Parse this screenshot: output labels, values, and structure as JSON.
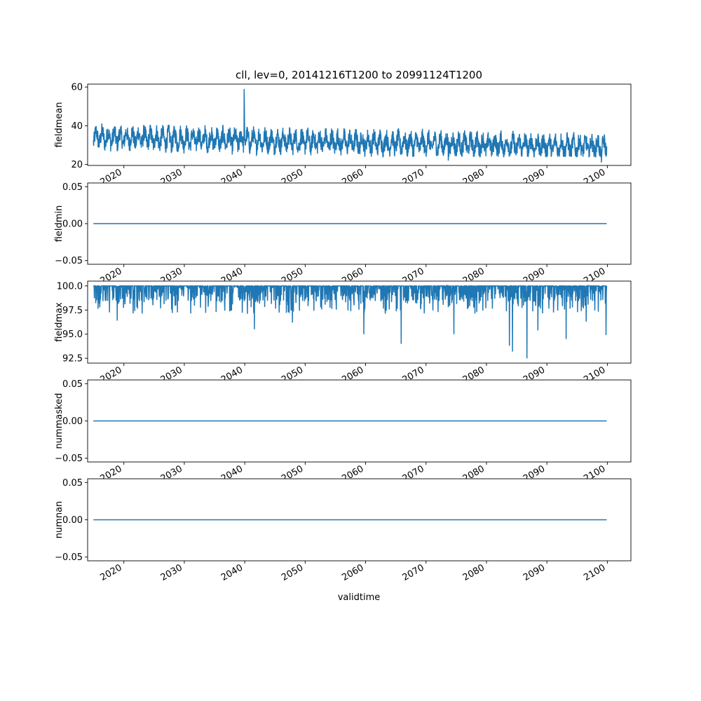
{
  "chart_data": {
    "type": "line",
    "title": "cll, lev=0, 20141216T1200 to 20991124T1200",
    "xlabel": "validtime",
    "xlim": [
      2014.0,
      2103.9
    ],
    "x_ticks": [
      2020,
      2030,
      2040,
      2050,
      2060,
      2070,
      2080,
      2090,
      2100
    ],
    "x_tick_labels": [
      "2020",
      "2030",
      "2040",
      "2050",
      "2060",
      "2070",
      "2080",
      "2090",
      "2100"
    ],
    "time_range": [
      2014.96,
      2099.9
    ],
    "line_color": "#1f77b4",
    "subplots": [
      {
        "ylabel": "fieldmean",
        "ylim": [
          19.5,
          61.5
        ],
        "y_ticks": [
          20,
          40,
          60
        ],
        "y_tick_labels": [
          "20",
          "40",
          "60"
        ],
        "series_kind": "noisy",
        "summary": {
          "base_start": 34,
          "base_end": 29,
          "typical_low": 27,
          "typical_high": 41,
          "min": 21,
          "max": 59
        },
        "spikes": [
          {
            "x": 2039.9,
            "y": 59.0
          },
          {
            "x": 2073.7,
            "y": 22.0
          },
          {
            "x": 2099.0,
            "y": 21.0
          }
        ]
      },
      {
        "ylabel": "fieldmin",
        "ylim": [
          -0.055,
          0.055
        ],
        "y_ticks": [
          -0.05,
          0.0,
          0.05
        ],
        "y_tick_labels": [
          "−0.05",
          "0.00",
          "0.05"
        ],
        "series_kind": "constant",
        "constant_value": 0.0
      },
      {
        "ylabel": "fieldmax",
        "ylim": [
          92.0,
          100.5
        ],
        "y_ticks": [
          92.5,
          95.0,
          97.5,
          100.0
        ],
        "y_tick_labels": [
          "92.5",
          "95.0",
          "97.5",
          "100.0"
        ],
        "series_kind": "dips",
        "summary": {
          "ceiling": 100.0,
          "min": 92.5
        },
        "deep_dips": [
          {
            "x": 2018.9,
            "y": 96.4
          },
          {
            "x": 2041.6,
            "y": 95.5
          },
          {
            "x": 2047.9,
            "y": 96.2
          },
          {
            "x": 2059.7,
            "y": 95.0
          },
          {
            "x": 2065.9,
            "y": 94.0
          },
          {
            "x": 2074.6,
            "y": 95.0
          },
          {
            "x": 2083.8,
            "y": 93.8
          },
          {
            "x": 2084.3,
            "y": 93.2
          },
          {
            "x": 2086.7,
            "y": 92.5
          },
          {
            "x": 2088.5,
            "y": 95.4
          },
          {
            "x": 2093.2,
            "y": 94.5
          },
          {
            "x": 2096.5,
            "y": 96.3
          },
          {
            "x": 2099.8,
            "y": 94.9
          }
        ]
      },
      {
        "ylabel": "nummasked",
        "ylim": [
          -0.055,
          0.055
        ],
        "y_ticks": [
          -0.05,
          0.0,
          0.05
        ],
        "y_tick_labels": [
          "−0.05",
          "0.00",
          "0.05"
        ],
        "series_kind": "constant",
        "constant_value": 0.0
      },
      {
        "ylabel": "numnan",
        "ylim": [
          -0.055,
          0.055
        ],
        "y_ticks": [
          -0.05,
          0.0,
          0.05
        ],
        "y_tick_labels": [
          "−0.05",
          "0.00",
          "0.05"
        ],
        "series_kind": "constant",
        "constant_value": 0.0
      }
    ]
  }
}
